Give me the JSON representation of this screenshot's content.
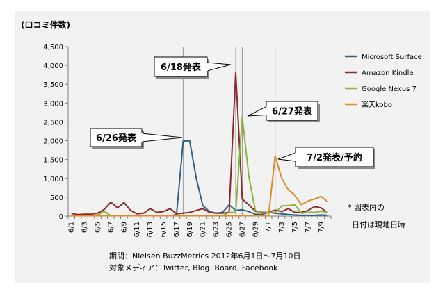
{
  "chart_data": {
    "type": "line",
    "ylabel": "(口コミ件数)",
    "ylim": [
      0,
      4500
    ],
    "yticks": [
      0,
      500,
      1000,
      1500,
      2000,
      2500,
      3000,
      3500,
      4000,
      4500
    ],
    "ytick_labels": [
      "0",
      "500",
      "1,000",
      "1,500",
      "2,000",
      "2,500",
      "3,000",
      "3,500",
      "4,000",
      "4,500"
    ],
    "x": [
      "6/1",
      "6/2",
      "6/3",
      "6/4",
      "6/5",
      "6/6",
      "6/7",
      "6/8",
      "6/9",
      "6/10",
      "6/11",
      "6/12",
      "6/13",
      "6/14",
      "6/15",
      "6/16",
      "6/17",
      "6/18",
      "6/19",
      "6/20",
      "6/21",
      "6/22",
      "6/23",
      "6/24",
      "6/25",
      "6/26",
      "6/27",
      "6/28",
      "6/29",
      "6/30",
      "7/1",
      "7/2",
      "7/3",
      "7/4",
      "7/5",
      "7/6",
      "7/7",
      "7/8",
      "7/9",
      "7/10"
    ],
    "xtick_labels": [
      "6/1",
      "6/3",
      "6/5",
      "6/7",
      "6/9",
      "6/11",
      "6/13",
      "6/15",
      "6/17",
      "6/19",
      "6/21",
      "6/23",
      "6/25",
      "6/27",
      "6/29",
      "7/1",
      "7/3",
      "7/5",
      "7/7",
      "7/9"
    ],
    "grid": "vertical lines at 6/18, 6/26, 6/27, 7/2",
    "legend_position": "right",
    "series": [
      {
        "name": "Microsoft Surface",
        "color": "#2e5f8a",
        "values": [
          20,
          10,
          10,
          10,
          10,
          10,
          10,
          10,
          10,
          10,
          10,
          10,
          10,
          10,
          10,
          10,
          40,
          1990,
          2000,
          1000,
          280,
          120,
          80,
          100,
          300,
          150,
          170,
          120,
          50,
          40,
          100,
          80,
          60,
          40,
          30,
          20,
          20,
          20,
          30,
          20
        ]
      },
      {
        "name": "Amazon Kindle",
        "color": "#8b2a2a",
        "values": [
          70,
          40,
          50,
          50,
          80,
          180,
          370,
          220,
          360,
          150,
          60,
          80,
          200,
          100,
          120,
          200,
          60,
          80,
          100,
          150,
          200,
          100,
          80,
          80,
          100,
          3820,
          450,
          300,
          130,
          100,
          100,
          160,
          120,
          200,
          100,
          100,
          150,
          250,
          220,
          80
        ]
      },
      {
        "name": "Google Nexus 7",
        "color": "#8cb33c",
        "values": [
          10,
          10,
          10,
          10,
          30,
          130,
          10,
          10,
          10,
          10,
          10,
          10,
          10,
          10,
          10,
          10,
          10,
          10,
          10,
          10,
          10,
          10,
          10,
          10,
          100,
          100,
          2640,
          1050,
          150,
          80,
          100,
          90,
          270,
          280,
          300,
          80,
          100,
          100,
          130,
          100
        ]
      },
      {
        "name": "楽天kobo",
        "color": "#e08a2a",
        "values": [
          10,
          10,
          10,
          10,
          10,
          10,
          10,
          10,
          10,
          10,
          10,
          10,
          10,
          10,
          10,
          10,
          10,
          10,
          10,
          10,
          10,
          10,
          10,
          10,
          10,
          10,
          10,
          10,
          10,
          10,
          10,
          1600,
          1000,
          700,
          550,
          300,
          400,
          450,
          520,
          380
        ]
      }
    ],
    "annotations": [
      {
        "text": "6/18発表",
        "x": "6/18"
      },
      {
        "text": "6/26発表",
        "x": "6/26"
      },
      {
        "text": "6/27発表",
        "x": "6/27"
      },
      {
        "text": "7/2発表/予約",
        "x": "7/2"
      }
    ],
    "notes": [
      "* 図表内の",
      "日付は現地日時"
    ],
    "footer": [
      "期間：Nielsen BuzzMetrics 2012年6月1日〜7月10日",
      "対象メディア：Twitter, Blog. Board, Facebook"
    ]
  }
}
